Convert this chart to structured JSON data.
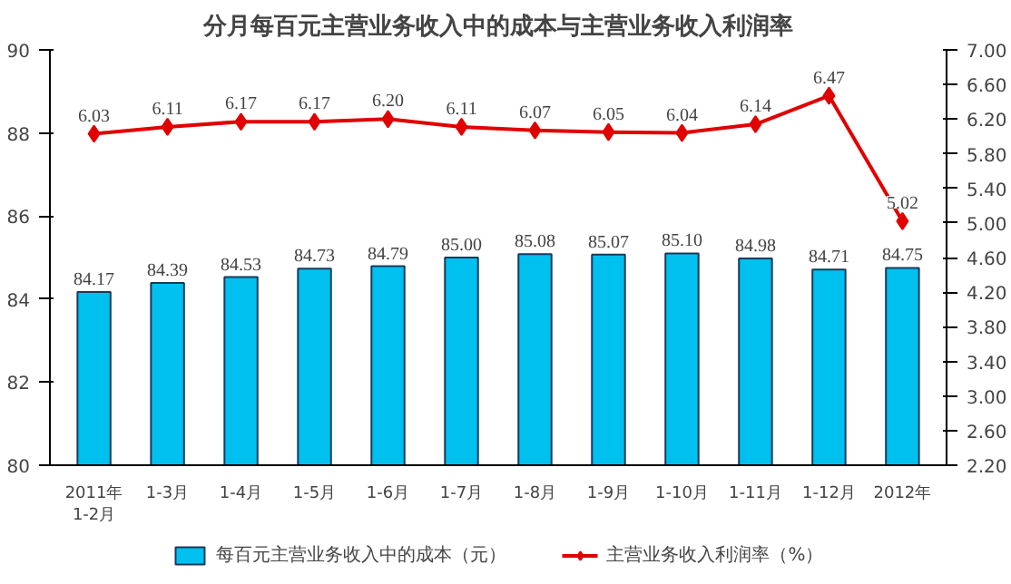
{
  "chart_data": {
    "type": "bar",
    "title": "分月每百元主营业务收入中的成本与主营业务收入利润率",
    "categories": [
      "2011年\n1-2月",
      "1-3月",
      "1-4月",
      "1-5月",
      "1-6月",
      "1-7月",
      "1-8月",
      "1-9月",
      "1-10月",
      "1-11月",
      "1-12月",
      "2012年"
    ],
    "series": [
      {
        "name": "每百元主营业务收入中的成本（元）",
        "color": "#00c0f0",
        "values": [
          84.17,
          84.39,
          84.53,
          84.73,
          84.79,
          85.0,
          85.08,
          85.07,
          85.1,
          84.98,
          84.71,
          84.75
        ],
        "value_labels": [
          "84.17",
          "84.39",
          "84.53",
          "84.73",
          "84.79",
          "85.00",
          "85.08",
          "85.07",
          "85.10",
          "84.98",
          "84.71",
          "84.75"
        ]
      },
      {
        "name": "主营业务收入利润率（%）",
        "type": "line",
        "axis": "y2",
        "color": "#e00000",
        "marker": "diamond",
        "values": [
          6.03,
          6.11,
          6.17,
          6.17,
          6.2,
          6.11,
          6.07,
          6.05,
          6.04,
          6.14,
          6.47,
          5.02
        ],
        "value_labels": [
          "6.03",
          "6.11",
          "6.17",
          "6.17",
          "6.20",
          "6.11",
          "6.07",
          "6.05",
          "6.04",
          "6.14",
          "6.47",
          "5.02"
        ]
      }
    ],
    "ylim": [
      80,
      90
    ],
    "yticks": [
      80,
      82,
      84,
      86,
      88,
      90
    ],
    "y2lim": [
      2.2,
      7.0
    ],
    "y2ticks": [
      {
        "value": 2.2,
        "label": "2.20"
      },
      {
        "value": 2.6,
        "label": "2.60"
      },
      {
        "value": 3.0,
        "label": "3.00"
      },
      {
        "value": 3.4,
        "label": "3.40"
      },
      {
        "value": 3.8,
        "label": "3.80"
      },
      {
        "value": 4.2,
        "label": "4.20"
      },
      {
        "value": 4.6,
        "label": "4.60"
      },
      {
        "value": 5.0,
        "label": "5.00"
      },
      {
        "value": 5.4,
        "label": "5.40"
      },
      {
        "value": 5.8,
        "label": "5.80"
      },
      {
        "value": 6.2,
        "label": "6.20"
      },
      {
        "value": 6.6,
        "label": "6.60"
      },
      {
        "value": 7.0,
        "label": "7.00"
      }
    ],
    "grid": false,
    "legend": "bottom"
  }
}
